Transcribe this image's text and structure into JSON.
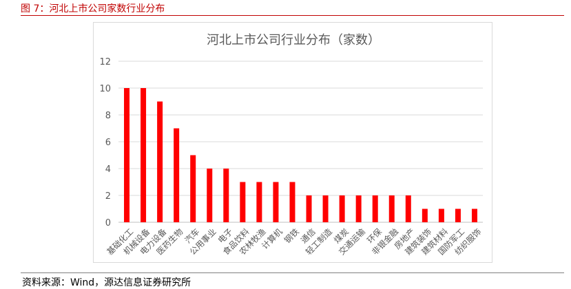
{
  "caption": "图 7：河北上市公司家数行业分布",
  "source": "资料来源：Wind，源达信息证券研究所",
  "colors": {
    "bar": "#ff0000",
    "caption": "#c00000",
    "grid": "#d9d9d9",
    "axis_text": "#595959"
  },
  "chart_data": {
    "type": "bar",
    "title": "河北上市公司行业分布（家数）",
    "xlabel": "",
    "ylabel": "",
    "ylim": [
      0,
      12
    ],
    "yticks": [
      0,
      2,
      4,
      6,
      8,
      10,
      12
    ],
    "grid": true,
    "legend": "none",
    "categories": [
      "基础化工",
      "机械设备",
      "电力设备",
      "医药生物",
      "汽车",
      "公用事业",
      "电子",
      "食品饮料",
      "农林牧渔",
      "计算机",
      "钢铁",
      "通信",
      "轻工制造",
      "煤炭",
      "交通运输",
      "环保",
      "非银金融",
      "房地产",
      "建筑装饰",
      "建筑材料",
      "国防军工",
      "纺织服饰"
    ],
    "values": [
      10,
      10,
      9,
      7,
      5,
      4,
      4,
      3,
      3,
      3,
      3,
      2,
      2,
      2,
      2,
      2,
      2,
      2,
      1,
      1,
      1,
      1
    ]
  }
}
